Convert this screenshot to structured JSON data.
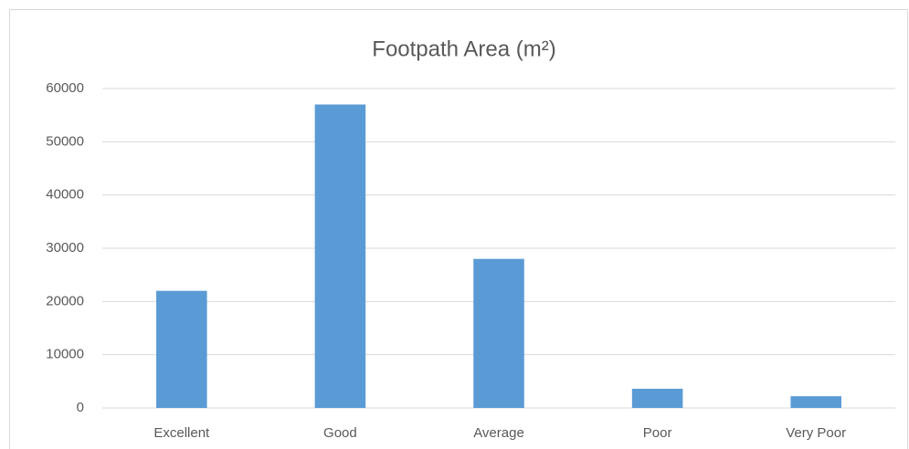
{
  "chart_data": {
    "type": "bar",
    "title": "Footpath Area (m²)",
    "categories": [
      "Excellent",
      "Good",
      "Average",
      "Poor",
      "Very Poor"
    ],
    "values": [
      22000,
      57000,
      28000,
      3600,
      2200
    ],
    "color": "#5b9bd5",
    "ylim": [
      0,
      60000
    ],
    "yticks": [
      0,
      10000,
      20000,
      30000,
      40000,
      50000,
      60000
    ],
    "grid": true
  }
}
